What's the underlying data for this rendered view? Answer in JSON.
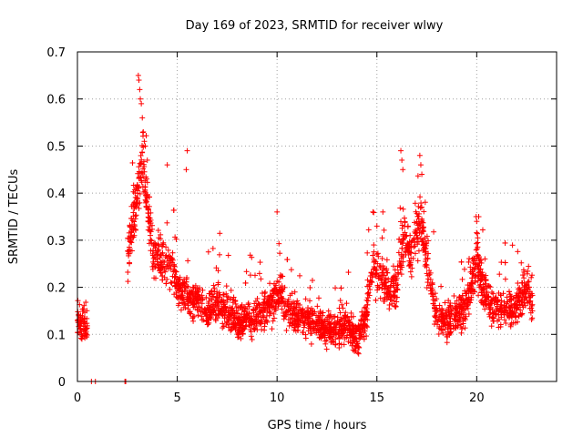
{
  "chart_data": {
    "type": "scatter",
    "title": "Day 169 of 2023, SRMTID for receiver wlwy",
    "xlabel": "GPS time / hours",
    "ylabel": "SRMTID / TECUs",
    "xlim": [
      0,
      24
    ],
    "ylim": [
      0,
      0.7
    ],
    "xticks": [
      0,
      5,
      10,
      15,
      20
    ],
    "yticks": [
      0,
      0.1,
      0.2,
      0.3,
      0.4,
      0.5,
      0.6,
      0.7
    ],
    "xtick_labels": [
      "0",
      "5",
      "10",
      "15",
      "20"
    ],
    "ytick_labels": [
      "0",
      "0.1",
      "0.2",
      "0.3",
      "0.4",
      "0.5",
      "0.6",
      "0.7"
    ],
    "grid": true,
    "marker": "+",
    "color": "#ff0000",
    "trend": [
      [
        0.0,
        0.12
      ],
      [
        0.3,
        0.13
      ],
      [
        0.5,
        0.12
      ],
      [
        2.5,
        0.25
      ],
      [
        2.7,
        0.33
      ],
      [
        2.9,
        0.36
      ],
      [
        3.1,
        0.44
      ],
      [
        3.3,
        0.46
      ],
      [
        3.5,
        0.38
      ],
      [
        3.8,
        0.27
      ],
      [
        4.2,
        0.25
      ],
      [
        4.6,
        0.26
      ],
      [
        5.0,
        0.2
      ],
      [
        5.5,
        0.18
      ],
      [
        6.0,
        0.17
      ],
      [
        6.5,
        0.15
      ],
      [
        7.0,
        0.17
      ],
      [
        7.5,
        0.15
      ],
      [
        8.0,
        0.13
      ],
      [
        8.5,
        0.13
      ],
      [
        9.0,
        0.14
      ],
      [
        9.5,
        0.15
      ],
      [
        10.0,
        0.19
      ],
      [
        10.5,
        0.15
      ],
      [
        11.0,
        0.14
      ],
      [
        11.5,
        0.13
      ],
      [
        12.0,
        0.12
      ],
      [
        12.5,
        0.11
      ],
      [
        13.0,
        0.11
      ],
      [
        13.5,
        0.12
      ],
      [
        14.0,
        0.09
      ],
      [
        14.5,
        0.15
      ],
      [
        14.8,
        0.25
      ],
      [
        15.0,
        0.24
      ],
      [
        15.5,
        0.2
      ],
      [
        16.0,
        0.2
      ],
      [
        16.3,
        0.3
      ],
      [
        16.7,
        0.27
      ],
      [
        17.2,
        0.35
      ],
      [
        17.6,
        0.22
      ],
      [
        18.0,
        0.14
      ],
      [
        18.5,
        0.13
      ],
      [
        19.0,
        0.14
      ],
      [
        19.5,
        0.16
      ],
      [
        20.0,
        0.26
      ],
      [
        20.3,
        0.2
      ],
      [
        20.8,
        0.16
      ],
      [
        21.3,
        0.15
      ],
      [
        21.8,
        0.15
      ],
      [
        22.3,
        0.18
      ],
      [
        22.6,
        0.2
      ],
      [
        22.8,
        0.15
      ]
    ],
    "spikes": [
      [
        3.05,
        0.65
      ],
      [
        3.08,
        0.64
      ],
      [
        3.12,
        0.62
      ],
      [
        3.15,
        0.6
      ],
      [
        3.2,
        0.59
      ],
      [
        3.25,
        0.56
      ],
      [
        3.3,
        0.53
      ],
      [
        3.35,
        0.51
      ],
      [
        3.4,
        0.5
      ],
      [
        3.5,
        0.47
      ],
      [
        16.2,
        0.49
      ],
      [
        16.25,
        0.47
      ],
      [
        16.3,
        0.45
      ],
      [
        17.15,
        0.48
      ],
      [
        17.2,
        0.46
      ],
      [
        17.25,
        0.44
      ],
      [
        5.5,
        0.49
      ],
      [
        5.45,
        0.45
      ],
      [
        4.5,
        0.46
      ],
      [
        14.8,
        0.36
      ],
      [
        15.0,
        0.33
      ],
      [
        15.3,
        0.36
      ],
      [
        10.0,
        0.36
      ],
      [
        20.1,
        0.35
      ],
      [
        20.0,
        0.34
      ]
    ],
    "zeros": [
      [
        0.7,
        0.0
      ],
      [
        0.9,
        0.0
      ],
      [
        2.38,
        0.0
      ],
      [
        2.42,
        0.0
      ]
    ]
  }
}
